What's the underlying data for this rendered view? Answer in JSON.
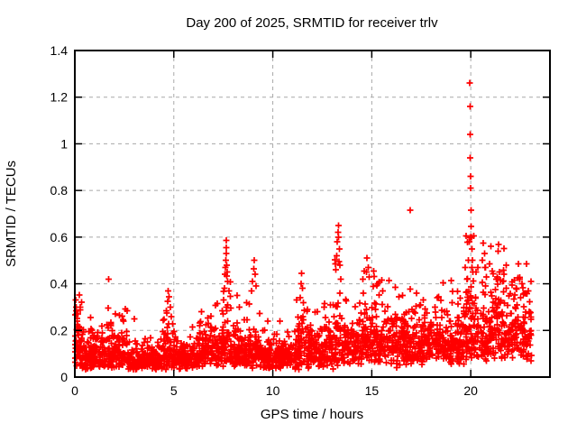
{
  "chart_data": {
    "type": "scatter",
    "title": "Day 200 of 2025, SRMTID for receiver trlv",
    "xlabel": "GPS time / hours",
    "ylabel": "SRMTID / TECUs",
    "xlim": [
      0,
      24
    ],
    "ylim": [
      0,
      1.4
    ],
    "xticks": [
      0,
      5,
      10,
      15,
      20
    ],
    "yticks": [
      0,
      0.2,
      0.4,
      0.6,
      0.8,
      1,
      1.2,
      1.4
    ],
    "grid": true,
    "grid_style": "dashed",
    "legend": "none",
    "marker": {
      "shape": "plus",
      "color": "#ff0000",
      "size": 7,
      "stroke_width": 1.7
    },
    "grid_color": "#a8a8a8",
    "axis_color": "#000000",
    "background": "#ffffff",
    "x_data_range": [
      0,
      23.08
    ],
    "seed": 20250720,
    "baseline_segments": [
      [
        0.0,
        0.35,
        0.13,
        1.0,
        150
      ],
      [
        0.35,
        1.6,
        0.095,
        0.9,
        105
      ],
      [
        1.6,
        2.7,
        0.105,
        1.0,
        105
      ],
      [
        2.7,
        4.4,
        0.068,
        0.85,
        100
      ],
      [
        4.4,
        5.1,
        0.12,
        1.1,
        115
      ],
      [
        5.1,
        6.3,
        0.085,
        0.9,
        100
      ],
      [
        6.3,
        7.4,
        0.11,
        0.9,
        105
      ],
      [
        7.4,
        7.9,
        0.15,
        1.2,
        125
      ],
      [
        7.9,
        9.4,
        0.11,
        1.0,
        105
      ],
      [
        9.4,
        11.2,
        0.085,
        0.95,
        100
      ],
      [
        11.2,
        11.7,
        0.12,
        1.1,
        110
      ],
      [
        11.7,
        13.1,
        0.115,
        0.95,
        105
      ],
      [
        13.1,
        13.5,
        0.18,
        1.2,
        115
      ],
      [
        13.5,
        14.5,
        0.125,
        0.9,
        105
      ],
      [
        14.5,
        15.2,
        0.16,
        1.0,
        115
      ],
      [
        15.2,
        16.8,
        0.15,
        0.95,
        110
      ],
      [
        16.8,
        19.7,
        0.145,
        0.9,
        108
      ],
      [
        19.7,
        20.3,
        0.21,
        1.1,
        135
      ],
      [
        20.3,
        21.0,
        0.17,
        1.0,
        112
      ],
      [
        21.0,
        22.0,
        0.2,
        0.9,
        118
      ],
      [
        22.0,
        23.08,
        0.19,
        0.9,
        118
      ]
    ],
    "outlier_points": [
      [
        0.04,
        0.33
      ],
      [
        0.06,
        0.3
      ],
      [
        0.09,
        0.27
      ],
      [
        0.12,
        0.24
      ],
      [
        1.68,
        0.295
      ],
      [
        1.7,
        0.42
      ],
      [
        2.05,
        0.27
      ],
      [
        2.25,
        0.265
      ],
      [
        2.45,
        0.24
      ],
      [
        3.0,
        0.25
      ],
      [
        4.62,
        0.285
      ],
      [
        4.68,
        0.325
      ],
      [
        4.72,
        0.37
      ],
      [
        4.76,
        0.345
      ],
      [
        4.82,
        0.3
      ],
      [
        4.88,
        0.26
      ],
      [
        5.95,
        0.215
      ],
      [
        6.75,
        0.23
      ],
      [
        7.52,
        0.33
      ],
      [
        7.56,
        0.38
      ],
      [
        7.58,
        0.44
      ],
      [
        7.6,
        0.47
      ],
      [
        7.62,
        0.5
      ],
      [
        7.64,
        0.53
      ],
      [
        7.65,
        0.555
      ],
      [
        7.66,
        0.585
      ],
      [
        7.68,
        0.48
      ],
      [
        7.7,
        0.45
      ],
      [
        7.73,
        0.41
      ],
      [
        7.78,
        0.37
      ],
      [
        8.2,
        0.35
      ],
      [
        8.32,
        0.3
      ],
      [
        8.92,
        0.37
      ],
      [
        8.98,
        0.41
      ],
      [
        9.03,
        0.465
      ],
      [
        9.06,
        0.5
      ],
      [
        9.1,
        0.44
      ],
      [
        9.15,
        0.39
      ],
      [
        10.35,
        0.24
      ],
      [
        11.38,
        0.34
      ],
      [
        11.43,
        0.4
      ],
      [
        11.46,
        0.445
      ],
      [
        11.5,
        0.38
      ],
      [
        11.55,
        0.32
      ],
      [
        12.25,
        0.28
      ],
      [
        12.6,
        0.3
      ],
      [
        12.9,
        0.31
      ],
      [
        13.18,
        0.46
      ],
      [
        13.22,
        0.52
      ],
      [
        13.26,
        0.58
      ],
      [
        13.29,
        0.62
      ],
      [
        13.31,
        0.65
      ],
      [
        13.33,
        0.6
      ],
      [
        13.36,
        0.55
      ],
      [
        13.4,
        0.48
      ],
      [
        13.44,
        0.42
      ],
      [
        14.55,
        0.42
      ],
      [
        14.62,
        0.455
      ],
      [
        14.75,
        0.51
      ],
      [
        14.82,
        0.47
      ],
      [
        14.88,
        0.43
      ],
      [
        15.3,
        0.4
      ],
      [
        15.55,
        0.37
      ],
      [
        16.2,
        0.385
      ],
      [
        16.55,
        0.35
      ],
      [
        16.94,
        0.715
      ],
      [
        17.25,
        0.36
      ],
      [
        17.6,
        0.33
      ],
      [
        18.3,
        0.34
      ],
      [
        19.05,
        0.32
      ],
      [
        19.82,
        0.42
      ],
      [
        19.88,
        0.5
      ],
      [
        19.92,
        0.58
      ],
      [
        19.95,
        1.26
      ],
      [
        19.96,
        1.16
      ],
      [
        19.97,
        1.04
      ],
      [
        19.98,
        0.94
      ],
      [
        19.99,
        0.86
      ],
      [
        20.0,
        0.81
      ],
      [
        20.01,
        0.715
      ],
      [
        20.02,
        0.645
      ],
      [
        20.04,
        0.6
      ],
      [
        20.06,
        0.55
      ],
      [
        20.08,
        0.5
      ],
      [
        20.11,
        0.45
      ],
      [
        20.58,
        0.5
      ],
      [
        20.64,
        0.575
      ],
      [
        20.7,
        0.53
      ],
      [
        20.74,
        0.47
      ],
      [
        20.78,
        0.43
      ],
      [
        21.3,
        0.42
      ],
      [
        21.45,
        0.45
      ],
      [
        21.62,
        0.41
      ],
      [
        21.8,
        0.38
      ],
      [
        22.3,
        0.38
      ],
      [
        22.48,
        0.42
      ],
      [
        22.58,
        0.4
      ],
      [
        22.72,
        0.36
      ]
    ]
  }
}
